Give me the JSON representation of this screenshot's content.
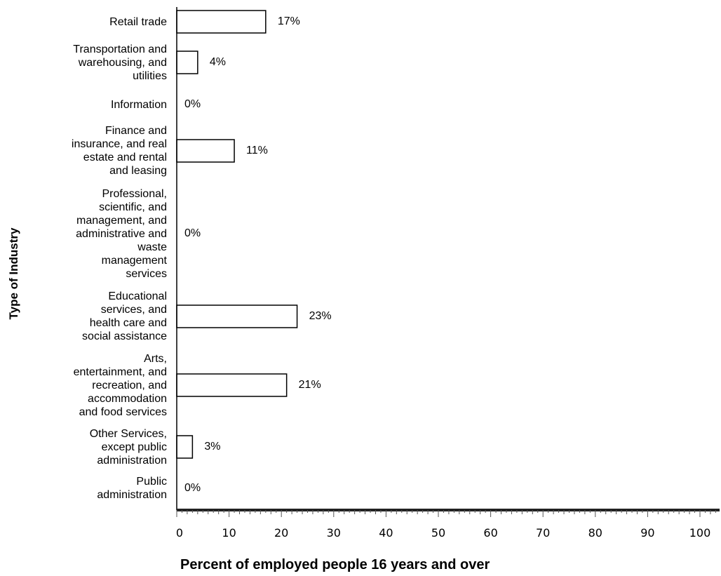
{
  "chart_data": {
    "type": "bar",
    "orientation": "horizontal",
    "title": "",
    "xlabel": "Percent of employed people 16 years and over",
    "ylabel": "Type of Industry",
    "xlim": [
      0,
      100
    ],
    "x_ticks": [
      0,
      10,
      20,
      30,
      40,
      50,
      60,
      70,
      80,
      90,
      100
    ],
    "tick_labels": [
      "0",
      "10",
      "20",
      "30",
      "40",
      "50",
      "60",
      "70",
      "80",
      "90",
      "100"
    ],
    "categories": [
      "Retail trade",
      "Transportation and warehousing, and utilities",
      "Information",
      "Finance and insurance, and real estate and rental and leasing",
      "Professional, scientific, and management, and administrative and waste management services",
      "Educational services, and health care and social assistance",
      "Arts, entertainment, and recreation, and accommodation and food services",
      "Other Services, except public administration",
      "Public administration"
    ],
    "category_lines": [
      [
        "Retail trade"
      ],
      [
        "Transportation and",
        "warehousing, and",
        "utilities"
      ],
      [
        "Information"
      ],
      [
        "Finance and",
        "insurance, and real",
        "estate and rental",
        "and leasing"
      ],
      [
        "Professional,",
        "scientific, and",
        "management, and",
        "administrative and",
        "waste",
        "management",
        "services"
      ],
      [
        "Educational",
        "services, and",
        "health care and",
        "social assistance"
      ],
      [
        "Arts,",
        "entertainment, and",
        "recreation, and",
        "accommodation",
        "and food services"
      ],
      [
        "Other Services,",
        "except public",
        "administration"
      ],
      [
        "Public",
        "administration"
      ]
    ],
    "values": [
      17,
      4,
      0,
      11,
      0,
      23,
      21,
      3,
      0
    ],
    "value_labels": [
      "17%",
      "4%",
      "0%",
      "11%",
      "0%",
      "23%",
      "21%",
      "3%",
      "0%"
    ],
    "bar_fill": "#ffffff",
    "bar_stroke": "#000000",
    "grid": false,
    "legend": "none"
  }
}
